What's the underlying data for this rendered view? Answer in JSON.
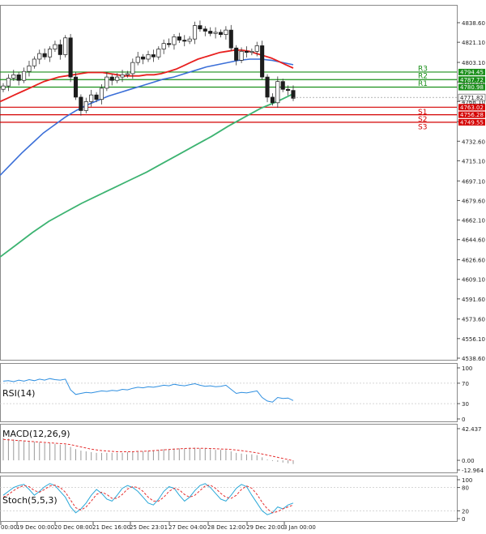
{
  "colors": {
    "up_candle": "#2e9e3e",
    "down_candle": "#d11a1a",
    "ma_red": "#e8201f",
    "ma_blue": "#3b6fd8",
    "ma_green": "#3cb371",
    "resistance": "#1a8f1a",
    "support": "#d40000",
    "rsi_line": "#2f8fe0",
    "macd_signal": "#e53030",
    "macd_hist": "#9a9a9a",
    "stoch_main": "#2aa8d8",
    "stoch_signal": "#e53030",
    "grid": "#c8c8c8",
    "axis_text": "#222222"
  },
  "chart_data": {
    "type": "candlestick",
    "instrument_panes": [
      "price",
      "RSI(14)",
      "MACD(12,26,9)",
      "Stoch(5,5,3)"
    ],
    "price_axis": {
      "ticks": [
        "4838.60",
        "4821.10",
        "4803.10",
        "4785.60",
        "4768.10",
        "4750.10",
        "4732.60",
        "4715.10",
        "4697.10",
        "4679.60",
        "4662.10",
        "4644.60",
        "4626.60",
        "4609.10",
        "4591.60",
        "4573.60",
        "4556.10",
        "4538.60"
      ],
      "ylim": [
        4538.6,
        4838.6
      ]
    },
    "time_axis": {
      "labels": [
        "00:00",
        "19 Dec 00:00",
        "20 Dec 08:00",
        "21 Dec 16:00",
        "25 Dec 23:01",
        "27 Dec 04:00",
        "28 Dec 12:00",
        "29 Dec 20:00",
        "3 Jan 00:00"
      ]
    },
    "levels": [
      {
        "name": "R3",
        "value": 4794.45,
        "label": "4794.45",
        "kind": "resistance"
      },
      {
        "name": "R2",
        "value": 4787.72,
        "label": "4787.72",
        "kind": "resistance"
      },
      {
        "name": "R1",
        "value": 4780.98,
        "label": "4780.98",
        "kind": "resistance"
      },
      {
        "name": "S1",
        "value": 4763.02,
        "label": "4763.02",
        "kind": "support"
      },
      {
        "name": "S2",
        "value": 4756.28,
        "label": "4756.28",
        "kind": "support"
      },
      {
        "name": "S3",
        "value": 4749.55,
        "label": "4749.55",
        "kind": "support"
      }
    ],
    "current_price": {
      "value": 4771.82,
      "label": "4771.82"
    },
    "candles_close": [
      4782,
      4789,
      4792,
      4787,
      4795,
      4800,
      4806,
      4811,
      4808,
      4815,
      4819,
      4810,
      4825,
      4790,
      4772,
      4760,
      4768,
      4774,
      4770,
      4780,
      4790,
      4787,
      4790,
      4792,
      4793,
      4803,
      4808,
      4806,
      4810,
      4808,
      4815,
      4820,
      4819,
      4826,
      4823,
      4822,
      4824,
      4836,
      4833,
      4831,
      4829,
      4830,
      4828,
      4832,
      4816,
      4805,
      4813,
      4812,
      4813,
      4818,
      4790,
      4772,
      4767,
      4786,
      4779,
      4778,
      4771
    ],
    "ma_red": {
      "x_start": 0,
      "values": [
        4768,
        4771,
        4774,
        4777,
        4780,
        4783,
        4786,
        4788,
        4790,
        4791,
        4792,
        4793,
        4794,
        4794,
        4794,
        4793,
        4792,
        4791,
        4791,
        4791,
        4792,
        4792,
        4793,
        4795,
        4797,
        4800,
        4803,
        4806,
        4808,
        4810,
        4812,
        4813,
        4814,
        4814,
        4813,
        4811,
        4809,
        4807,
        4804,
        4801,
        4798
      ]
    },
    "ma_blue": {
      "values": [
        4702,
        4712,
        4722,
        4731,
        4740,
        4747,
        4754,
        4760,
        4765,
        4769,
        4773,
        4776,
        4779,
        4782,
        4785,
        4788,
        4790,
        4793,
        4796,
        4799,
        4801,
        4803,
        4805,
        4806,
        4806,
        4805,
        4803,
        4801
      ]
    },
    "ma_green": {
      "values": [
        4629,
        4640,
        4651,
        4661,
        4669,
        4677,
        4684,
        4691,
        4698,
        4705,
        4713,
        4721,
        4729,
        4737,
        4746,
        4754,
        4762,
        4768,
        4775
      ]
    },
    "rsi": {
      "name": "RSI(14)",
      "axis_ticks": [
        "100",
        "70",
        "30",
        "0"
      ],
      "ylim": [
        0,
        100
      ],
      "values": [
        74,
        75,
        73,
        76,
        74,
        77,
        75,
        78,
        76,
        79,
        77,
        76,
        78,
        57,
        48,
        50,
        52,
        51,
        53,
        55,
        54,
        56,
        55,
        58,
        57,
        60,
        62,
        61,
        63,
        62,
        64,
        66,
        65,
        68,
        66,
        65,
        67,
        69,
        66,
        64,
        65,
        63,
        64,
        66,
        58,
        50,
        52,
        51,
        53,
        55,
        42,
        35,
        33,
        42,
        40,
        41,
        36
      ]
    },
    "macd": {
      "name": "MACD(12,26,9)",
      "axis_ticks": [
        "42.437",
        "0.00",
        "-12.964"
      ],
      "ylim": [
        -12.964,
        42.437
      ],
      "histogram": [
        30,
        29,
        28,
        27,
        26,
        25,
        25,
        24,
        23,
        23,
        22,
        21,
        21,
        18,
        15,
        13,
        12,
        11,
        10,
        10,
        10,
        10,
        10,
        10,
        11,
        11,
        12,
        12,
        13,
        13,
        14,
        15,
        15,
        16,
        16,
        16,
        17,
        17,
        16,
        16,
        15,
        14,
        14,
        14,
        12,
        10,
        9,
        8,
        8,
        7,
        4,
        1,
        -1,
        -2,
        -3,
        -4,
        -5
      ],
      "signal": [
        28,
        27.5,
        27,
        26.5,
        26,
        25.5,
        25,
        24.5,
        24,
        23.5,
        23,
        22.5,
        22,
        21,
        19.5,
        18,
        16.5,
        15,
        14,
        13,
        12.5,
        12,
        11.5,
        11.5,
        11.5,
        11.5,
        12,
        12,
        12.5,
        13,
        13.5,
        14,
        14.5,
        15,
        15.5,
        15.8,
        16,
        16.2,
        16.2,
        16,
        15.8,
        15.5,
        15.2,
        15,
        14.5,
        13.8,
        13,
        12,
        11,
        10,
        8.5,
        7,
        5.5,
        4,
        2.5,
        1,
        -0.5
      ]
    },
    "stoch": {
      "name": "Stoch(5,5,3)",
      "axis_ticks": [
        "100",
        "80",
        "20",
        "0"
      ],
      "ylim": [
        0,
        100
      ],
      "main": [
        60,
        70,
        80,
        85,
        88,
        75,
        60,
        70,
        82,
        90,
        85,
        70,
        55,
        30,
        15,
        25,
        40,
        60,
        75,
        65,
        50,
        45,
        60,
        78,
        85,
        80,
        70,
        55,
        40,
        35,
        50,
        70,
        82,
        78,
        60,
        45,
        55,
        72,
        85,
        90,
        80,
        65,
        50,
        45,
        60,
        78,
        88,
        82,
        60,
        40,
        20,
        10,
        15,
        30,
        25,
        35,
        40
      ],
      "signal": [
        55,
        62,
        72,
        80,
        85,
        82,
        72,
        68,
        75,
        84,
        86,
        80,
        68,
        48,
        28,
        22,
        30,
        45,
        62,
        68,
        62,
        52,
        52,
        62,
        76,
        82,
        80,
        70,
        55,
        45,
        45,
        55,
        70,
        78,
        74,
        62,
        55,
        60,
        72,
        84,
        86,
        78,
        65,
        55,
        52,
        60,
        75,
        84,
        78,
        62,
        42,
        25,
        15,
        18,
        25,
        30,
        35
      ]
    }
  }
}
